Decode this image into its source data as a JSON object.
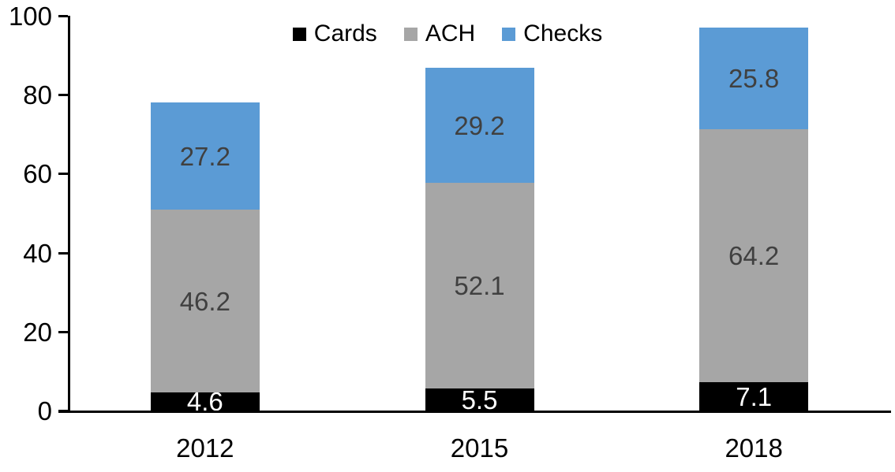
{
  "chart_data": {
    "type": "bar",
    "stacked": true,
    "title": "",
    "xlabel": "",
    "ylabel": "",
    "categories": [
      "2012",
      "2015",
      "2018"
    ],
    "series": [
      {
        "name": "Cards",
        "color": "#000000",
        "label_color": "#ffffff",
        "values": [
          4.6,
          5.5,
          7.1
        ]
      },
      {
        "name": "ACH",
        "color": "#a6a6a6",
        "label_color": "#404040",
        "values": [
          46.2,
          52.1,
          64.2
        ]
      },
      {
        "name": "Checks",
        "color": "#5b9bd5",
        "label_color": "#404040",
        "values": [
          27.2,
          29.2,
          25.8
        ]
      }
    ],
    "totals": [
      78.0,
      86.8,
      97.1
    ],
    "ylim": [
      0,
      100
    ],
    "yticks": [
      0,
      20,
      40,
      60,
      80,
      100
    ],
    "grid": false,
    "legend_position": "top",
    "axis_color": "#000000",
    "background_color": "#ffffff"
  }
}
